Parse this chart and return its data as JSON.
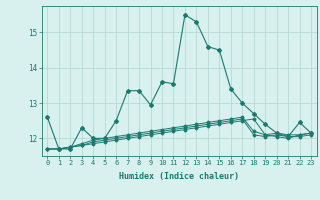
{
  "title": "",
  "xlabel": "Humidex (Indice chaleur)",
  "x": [
    0,
    1,
    2,
    3,
    4,
    5,
    6,
    7,
    8,
    9,
    10,
    11,
    12,
    13,
    14,
    15,
    16,
    17,
    18,
    19,
    20,
    21,
    22,
    23
  ],
  "line1": [
    12.6,
    11.7,
    11.7,
    12.3,
    12.0,
    12.0,
    12.5,
    13.35,
    13.35,
    12.95,
    13.6,
    13.55,
    15.5,
    15.3,
    14.6,
    14.5,
    13.4,
    13.0,
    12.7,
    12.4,
    12.15,
    12.05,
    12.45,
    12.15
  ],
  "line2": [
    11.7,
    11.7,
    11.75,
    11.8,
    11.85,
    11.9,
    11.95,
    12.0,
    12.05,
    12.1,
    12.15,
    12.2,
    12.25,
    12.3,
    12.35,
    12.4,
    12.45,
    12.5,
    12.55,
    12.1,
    12.05,
    12.0,
    12.1,
    12.15
  ],
  "line3": [
    11.7,
    11.7,
    11.75,
    11.8,
    11.9,
    11.95,
    12.0,
    12.05,
    12.1,
    12.15,
    12.2,
    12.25,
    12.3,
    12.35,
    12.4,
    12.45,
    12.5,
    12.55,
    12.1,
    12.05,
    12.1,
    12.05,
    12.05,
    12.1
  ],
  "line4": [
    11.7,
    11.7,
    11.75,
    11.85,
    11.95,
    12.0,
    12.05,
    12.1,
    12.15,
    12.2,
    12.25,
    12.3,
    12.35,
    12.4,
    12.45,
    12.5,
    12.55,
    12.6,
    12.2,
    12.1,
    12.15,
    12.1,
    12.1,
    12.15
  ],
  "line_color": "#1a7a6e",
  "bg_color": "#d8f0ee",
  "grid_color": "#afd6d2",
  "ylim": [
    11.5,
    15.75
  ],
  "yticks": [
    12,
    13,
    14,
    15
  ],
  "xlim": [
    -0.5,
    23.5
  ]
}
